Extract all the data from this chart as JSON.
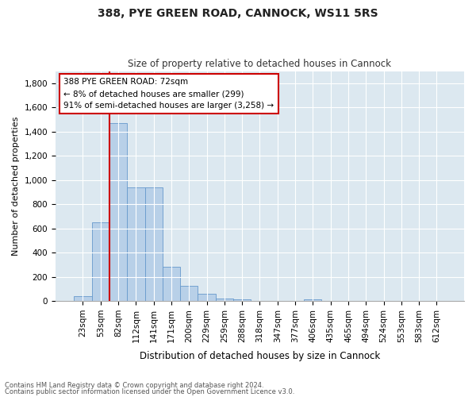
{
  "title1": "388, PYE GREEN ROAD, CANNOCK, WS11 5RS",
  "title2": "Size of property relative to detached houses in Cannock",
  "xlabel": "Distribution of detached houses by size in Cannock",
  "ylabel": "Number of detached properties",
  "categories": [
    "23sqm",
    "53sqm",
    "82sqm",
    "112sqm",
    "141sqm",
    "171sqm",
    "200sqm",
    "229sqm",
    "259sqm",
    "288sqm",
    "318sqm",
    "347sqm",
    "377sqm",
    "406sqm",
    "435sqm",
    "465sqm",
    "494sqm",
    "524sqm",
    "553sqm",
    "583sqm",
    "612sqm"
  ],
  "bar_values": [
    40,
    648,
    1468,
    938,
    938,
    285,
    128,
    58,
    22,
    15,
    0,
    0,
    0,
    15,
    0,
    0,
    0,
    0,
    0,
    0,
    0
  ],
  "bar_color": "#b8d0e8",
  "bar_edge_color": "#6699cc",
  "vline_pos": 1.5,
  "vline_color": "#cc0000",
  "annotation_text": "388 PYE GREEN ROAD: 72sqm\n← 8% of detached houses are smaller (299)\n91% of semi-detached houses are larger (3,258) →",
  "annotation_box_color": "#ffffff",
  "annotation_box_edge": "#cc0000",
  "ylim": [
    0,
    1900
  ],
  "yticks": [
    0,
    200,
    400,
    600,
    800,
    1000,
    1200,
    1400,
    1600,
    1800
  ],
  "bg_color": "#dce8f0",
  "footnote1": "Contains HM Land Registry data © Crown copyright and database right 2024.",
  "footnote2": "Contains public sector information licensed under the Open Government Licence v3.0."
}
